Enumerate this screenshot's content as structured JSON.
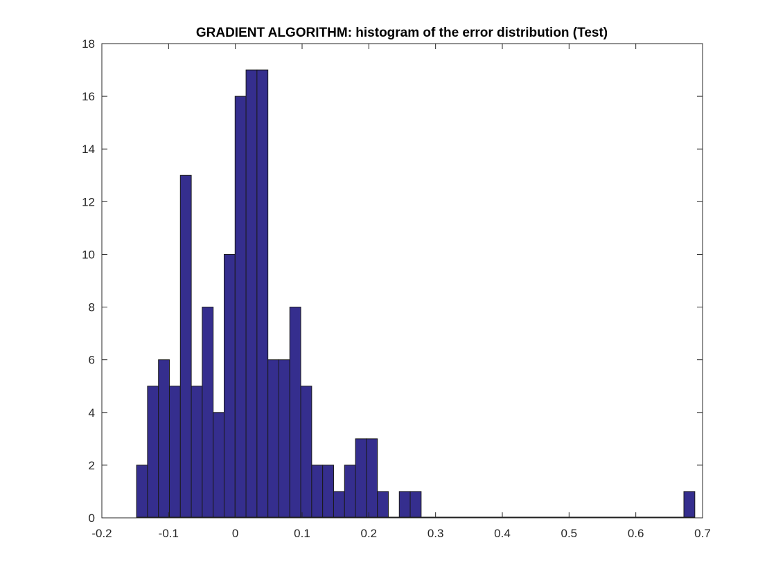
{
  "chart_data": {
    "type": "bar",
    "title": "GRADIENT ALGORITHM: histogram of the error distribution (Test)",
    "xlabel": "",
    "ylabel": "",
    "xlim": [
      -0.2,
      0.7
    ],
    "ylim": [
      0,
      18
    ],
    "x_ticks": [
      "-0.2",
      "-0.1",
      "0",
      "0.1",
      "0.2",
      "0.3",
      "0.4",
      "0.5",
      "0.6",
      "0.7"
    ],
    "y_ticks": [
      "0",
      "2",
      "4",
      "6",
      "8",
      "10",
      "12",
      "14",
      "16",
      "18"
    ],
    "grid": false,
    "bar_color": "#352e8e",
    "bins": {
      "start": -0.148,
      "width": 0.0164,
      "counts": [
        2,
        5,
        6,
        5,
        13,
        5,
        8,
        4,
        10,
        16,
        17,
        17,
        6,
        6,
        8,
        5,
        2,
        2,
        1,
        2,
        3,
        3,
        1,
        0,
        1,
        1,
        0,
        0,
        0,
        0,
        0,
        0,
        0,
        0,
        0,
        0,
        0,
        0,
        0,
        0,
        0,
        0,
        0,
        0,
        0,
        0,
        0,
        0,
        0,
        0,
        1
      ]
    }
  }
}
